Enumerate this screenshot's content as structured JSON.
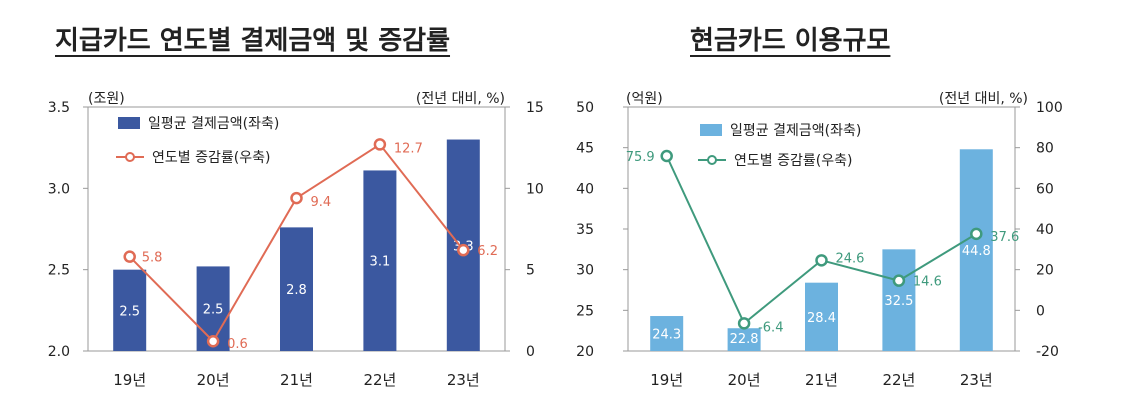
{
  "chart_data": [
    {
      "type": "bar+line",
      "title": "지급카드 연도별 결제금액 및 증감률",
      "left_unit": "(조원)",
      "right_unit": "(전년 대비, %)",
      "categories": [
        "19년",
        "20년",
        "21년",
        "22년",
        "23년"
      ],
      "series": [
        {
          "name": "일평균 결제금액(좌축)",
          "axis": "left",
          "kind": "bar",
          "color": "#3b58a0",
          "values": [
            2.5,
            2.52,
            2.76,
            3.11,
            3.3
          ],
          "labels": [
            "2.5",
            "2.5",
            "2.8",
            "3.1",
            "3.3"
          ]
        },
        {
          "name": "연도별 증감률(우축)",
          "axis": "right",
          "kind": "line",
          "color": "#e06b55",
          "values": [
            5.8,
            0.6,
            9.4,
            12.7,
            6.2
          ],
          "labels": [
            "5.8",
            "0.6",
            "9.4",
            "12.7",
            "6.2"
          ]
        }
      ],
      "ylim_left": [
        2.0,
        3.5
      ],
      "yticks_left": [
        "2.0",
        "2.5",
        "3.0",
        "3.5"
      ],
      "ylim_right": [
        0,
        15
      ],
      "yticks_right": [
        "0",
        "5",
        "10",
        "15"
      ],
      "label_color": "#e06b55"
    },
    {
      "type": "bar+line",
      "title": "현금카드 이용규모",
      "left_unit": "(억원)",
      "right_unit": "(전년 대비, %)",
      "categories": [
        "19년",
        "20년",
        "21년",
        "22년",
        "23년"
      ],
      "series": [
        {
          "name": "일평균 결제금액(좌축)",
          "axis": "left",
          "kind": "bar",
          "color": "#6cb2df",
          "values": [
            24.3,
            22.8,
            28.4,
            32.5,
            44.8
          ],
          "labels": [
            "24.3",
            "22.8",
            "28.4",
            "32.5",
            "44.8"
          ]
        },
        {
          "name": "연도별 증감률(우축)",
          "axis": "right",
          "kind": "line",
          "color": "#3f9a7d",
          "values": [
            75.9,
            -6.4,
            24.6,
            14.6,
            37.6
          ],
          "labels": [
            "75.9",
            "-6.4",
            "24.6",
            "14.6",
            "37.6"
          ]
        }
      ],
      "ylim_left": [
        20,
        50
      ],
      "yticks_left": [
        "20",
        "25",
        "30",
        "35",
        "40",
        "45",
        "50"
      ],
      "ylim_right": [
        -20,
        100
      ],
      "yticks_right": [
        "-20",
        "0",
        "20",
        "40",
        "60",
        "80",
        "100"
      ],
      "label_color": "#3f9a7d"
    }
  ]
}
